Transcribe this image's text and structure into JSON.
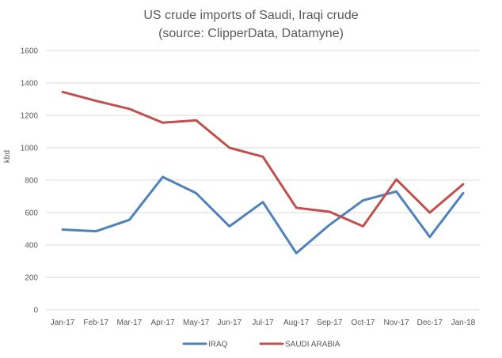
{
  "chart_data": {
    "type": "line",
    "title": "US crude imports of Saudi, Iraqi crude",
    "subtitle": "(source: ClipperData, Datamyne)",
    "xlabel": "",
    "ylabel": "kbd",
    "ylim": [
      0,
      1600
    ],
    "yticks": [
      "0",
      "200",
      "400",
      "600",
      "800",
      "1000",
      "1200",
      "1400",
      "1600"
    ],
    "grid": true,
    "legend_position": "bottom",
    "categories": [
      "Jan-17",
      "Feb-17",
      "Mar-17",
      "Apr-17",
      "May-17",
      "Jun-17",
      "Jul-17",
      "Aug-17",
      "Sep-17",
      "Oct-17",
      "Nov-17",
      "Dec-17",
      "Jan-18"
    ],
    "series": [
      {
        "name": "IRAQ",
        "color": "#4f81bd",
        "values": [
          495,
          485,
          555,
          820,
          720,
          515,
          665,
          350,
          525,
          675,
          730,
          450,
          720
        ]
      },
      {
        "name": "SAUDI ARABIA",
        "color": "#c0504d",
        "values": [
          1345,
          1290,
          1240,
          1155,
          1170,
          1000,
          945,
          630,
          605,
          515,
          805,
          600,
          775
        ]
      }
    ]
  }
}
